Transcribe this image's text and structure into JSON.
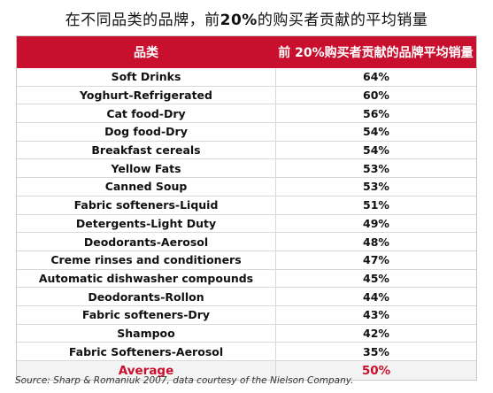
{
  "title": {
    "prefix": "在不同品类的品牌，前",
    "pct": "20%",
    "suffix": "的购买者贡献的平均销量"
  },
  "table": {
    "headers": [
      "品类",
      "前 20%购买者贡献的品牌平均销量"
    ],
    "rows": [
      {
        "category": "Soft Drinks",
        "value": "64%"
      },
      {
        "category": "Yoghurt-Refrigerated",
        "value": "60%"
      },
      {
        "category": "Cat food-Dry",
        "value": "56%"
      },
      {
        "category": "Dog food-Dry",
        "value": "54%"
      },
      {
        "category": "Breakfast cereals",
        "value": "54%"
      },
      {
        "category": "Yellow Fats",
        "value": "53%"
      },
      {
        "category": "Canned Soup",
        "value": "53%"
      },
      {
        "category": "Fabric softeners-Liquid",
        "value": "51%"
      },
      {
        "category": "Detergents-Light Duty",
        "value": "49%"
      },
      {
        "category": "Deodorants-Aerosol",
        "value": "48%"
      },
      {
        "category": "Creme rinses and conditioners",
        "value": "47%"
      },
      {
        "category": "Automatic dishwasher compounds",
        "value": "45%"
      },
      {
        "category": "Deodorants-Rollon",
        "value": "44%"
      },
      {
        "category": "Fabric softeners-Dry",
        "value": "43%"
      },
      {
        "category": "Shampoo",
        "value": "42%"
      },
      {
        "category": "Fabric Softeners-Aerosol",
        "value": "35%"
      }
    ],
    "average": {
      "label": "Average",
      "value": "50%"
    }
  },
  "source": "Source: Sharp & Romaniuk 2007, data courtesy of the Nielson Company.",
  "colors": {
    "header_bg": "#c8102e",
    "average_text": "#c8102e"
  }
}
